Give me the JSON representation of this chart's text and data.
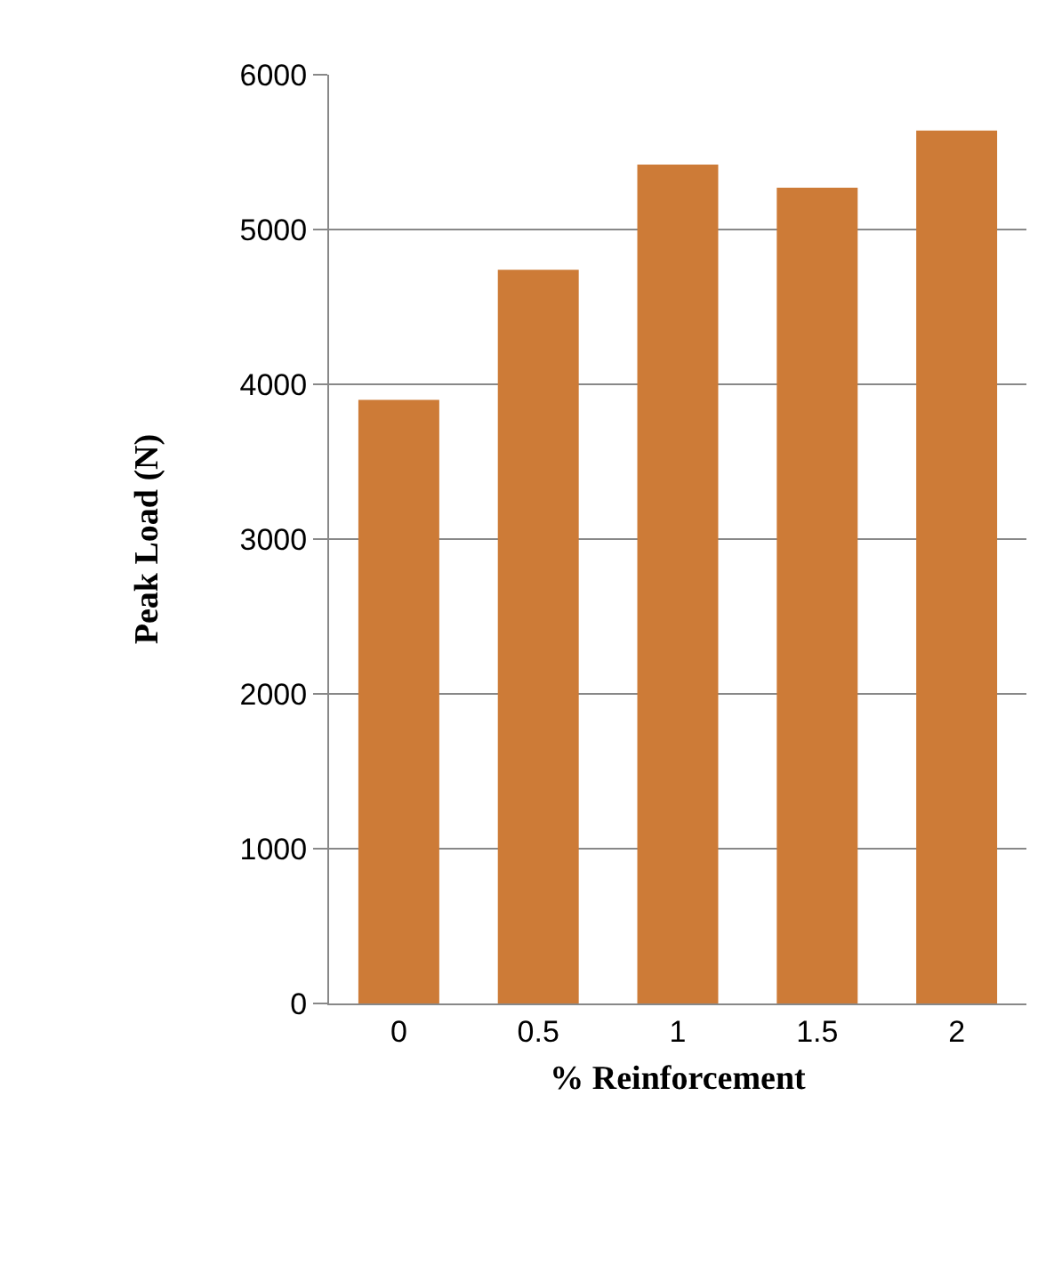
{
  "chart_data": {
    "type": "bar",
    "xlabel": "% Reinforcement",
    "ylabel": "Peak Load (N)",
    "categories": [
      "0",
      "0.5",
      "1",
      "1.5",
      "2"
    ],
    "values": [
      3900,
      4740,
      5420,
      5270,
      5640
    ],
    "color": "#cd7b37",
    "ylim": [
      0,
      6000
    ],
    "yticks": [
      0,
      1000,
      2000,
      3000,
      4000,
      5000,
      6000
    ],
    "grid": "y"
  }
}
